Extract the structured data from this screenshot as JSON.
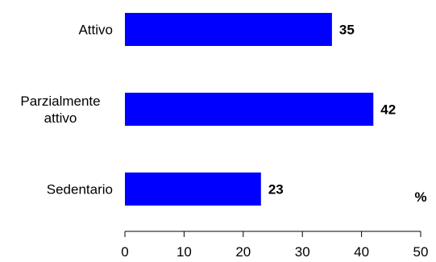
{
  "chart_data": {
    "type": "bar",
    "orientation": "horizontal",
    "categories": [
      [
        "Attivo"
      ],
      [
        "Parzialmente",
        "attivo"
      ],
      [
        "Sedentario"
      ]
    ],
    "values": [
      35,
      42,
      23
    ],
    "data_labels": [
      "35",
      "42",
      "23"
    ],
    "xlim": [
      0,
      50
    ],
    "xticks": [
      "0",
      "10",
      "20",
      "30",
      "40",
      "50"
    ],
    "unit_label": "%",
    "grid": false,
    "legend": "none",
    "bar_color": "#0000ff"
  }
}
